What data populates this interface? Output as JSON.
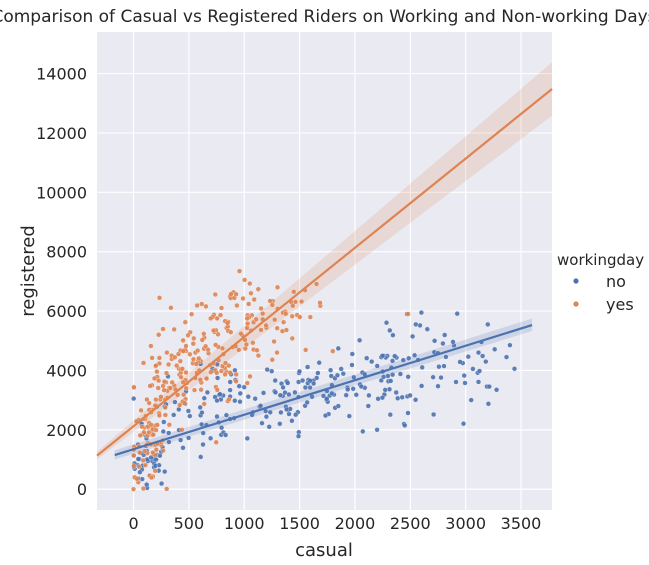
{
  "chart_data": {
    "type": "scatter",
    "title": "Comparison of Casual vs Registered Riders on Working and Non-working Days",
    "xlabel": "casual",
    "ylabel": "registered",
    "xlim": [
      -330,
      3780
    ],
    "ylim": [
      -700,
      15400
    ],
    "x_ticks": [
      0,
      500,
      1000,
      1500,
      2000,
      2500,
      3000,
      3500
    ],
    "y_ticks": [
      0,
      2000,
      4000,
      6000,
      8000,
      10000,
      12000,
      14000
    ],
    "grid": true,
    "legend": {
      "title": "workingday",
      "placement": "right"
    },
    "series": [
      {
        "name": "no",
        "color": "#4c72b0",
        "regression": {
          "x_range": [
            -170,
            3600
          ],
          "y_start": 1150,
          "y_end": 5530,
          "ci_start": [
            1000,
            1310
          ],
          "ci_end": [
            5330,
            5750
          ]
        },
        "clusters": [
          {
            "cx": 150,
            "cy": 900,
            "sx": 90,
            "sy": 400,
            "n": 40
          },
          {
            "cx": 450,
            "cy": 2300,
            "sx": 220,
            "sy": 600,
            "n": 35
          },
          {
            "cx": 900,
            "cy": 2700,
            "sx": 250,
            "sy": 700,
            "n": 35
          },
          {
            "cx": 1300,
            "cy": 3300,
            "sx": 250,
            "sy": 650,
            "n": 40
          },
          {
            "cx": 1800,
            "cy": 3400,
            "sx": 300,
            "sy": 700,
            "n": 45
          },
          {
            "cx": 2300,
            "cy": 3800,
            "sx": 250,
            "sy": 800,
            "n": 45
          },
          {
            "cx": 2700,
            "cy": 4400,
            "sx": 250,
            "sy": 650,
            "n": 30
          },
          {
            "cx": 3200,
            "cy": 4200,
            "sx": 180,
            "sy": 600,
            "n": 14
          }
        ],
        "outliers": [
          [
            2470,
            5900
          ],
          [
            2600,
            5950
          ],
          [
            3200,
            5550
          ],
          [
            3400,
            4850
          ],
          [
            3050,
            3000
          ],
          [
            3280,
            3350
          ],
          [
            2450,
            2150
          ],
          [
            2200,
            2000
          ],
          [
            1850,
            2800
          ],
          [
            2550,
            5550
          ]
        ]
      },
      {
        "name": "yes",
        "color": "#dd8452",
        "regression": {
          "x_range": [
            -330,
            3780
          ],
          "y_start": 1130,
          "y_end": 13480,
          "ci_start": [
            1000,
            1260
          ],
          "ci_end": [
            12580,
            14380
          ]
        },
        "clusters": [
          {
            "cx": 120,
            "cy": 1500,
            "sx": 80,
            "sy": 600,
            "n": 60
          },
          {
            "cx": 300,
            "cy": 3500,
            "sx": 150,
            "sy": 900,
            "n": 60
          },
          {
            "cx": 600,
            "cy": 4200,
            "sx": 170,
            "sy": 800,
            "n": 60
          },
          {
            "cx": 850,
            "cy": 5200,
            "sx": 180,
            "sy": 900,
            "n": 60
          },
          {
            "cx": 1150,
            "cy": 5700,
            "sx": 170,
            "sy": 600,
            "n": 40
          },
          {
            "cx": 1450,
            "cy": 6100,
            "sx": 100,
            "sy": 400,
            "n": 12
          }
        ],
        "outliers": [
          [
            0,
            0
          ],
          [
            30,
            350
          ],
          [
            1800,
            4650
          ],
          [
            2480,
            5900
          ],
          [
            1550,
            6700
          ],
          [
            1300,
            6800
          ]
        ]
      }
    ]
  }
}
